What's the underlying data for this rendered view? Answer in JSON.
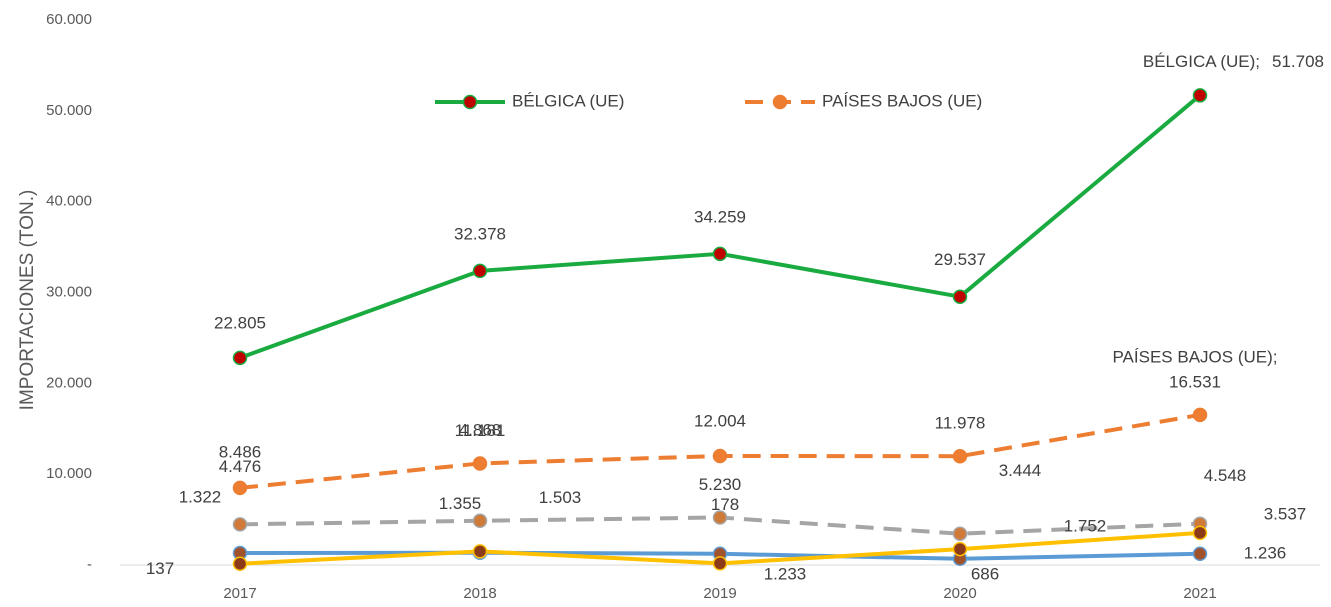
{
  "chart_data": {
    "type": "line",
    "y_label": "IMPORTACIONES (TON.)",
    "categories": [
      "2017",
      "2018",
      "2019",
      "2020",
      "2021"
    ],
    "ylim": [
      0,
      60000
    ],
    "yticks": [
      {
        "value": 0,
        "label": "-"
      },
      {
        "value": 10000,
        "label": "10.000"
      },
      {
        "value": 20000,
        "label": "20.000"
      },
      {
        "value": 30000,
        "label": "30.000"
      },
      {
        "value": 40000,
        "label": "40.000"
      },
      {
        "value": 50000,
        "label": "50.000"
      },
      {
        "value": 60000,
        "label": "60.000"
      }
    ],
    "series": [
      {
        "name": "BÉLGICA (UE)",
        "end_label": "BÉLGICA (UE);",
        "color": "#1aab40",
        "marker_color": "#c00000",
        "dashed": false,
        "legend": true,
        "values": [
          22805,
          32378,
          34259,
          29537,
          51708
        ],
        "value_labels": [
          "22.805",
          "32.378",
          "34.259",
          "29.537",
          "51.708"
        ]
      },
      {
        "name": "PAÍSES BAJOS (UE)",
        "end_label": "PAÍSES BAJOS (UE);",
        "color": "#ed7d31",
        "marker_color": "#ed7d31",
        "dashed": true,
        "legend": true,
        "values": [
          8486,
          11181,
          12004,
          11978,
          16531
        ],
        "value_labels": [
          "8.486",
          "11.181",
          "12.004",
          "11.978",
          "16.531"
        ]
      },
      {
        "color": "#a5a5a5",
        "marker_color": "#d07a3a",
        "dashed": true,
        "values": [
          4476,
          4868,
          5230,
          3444,
          4548
        ],
        "value_labels": [
          "4.476",
          "4.868",
          "5.230",
          "3.444",
          "4.548"
        ]
      },
      {
        "color": "#5b9bd5",
        "marker_color": "#a0522d",
        "dashed": false,
        "values": [
          1322,
          1355,
          1233,
          686,
          1236
        ],
        "value_labels": [
          "1.322",
          "1.355",
          "1.233",
          "686",
          "1.236"
        ]
      },
      {
        "color": "#ffc000",
        "marker_color": "#8b3a1a",
        "dashed": false,
        "values": [
          137,
          1503,
          178,
          1752,
          3537
        ],
        "value_labels": [
          "137",
          "1.503",
          "178",
          "1.752",
          "3.537"
        ]
      }
    ]
  }
}
